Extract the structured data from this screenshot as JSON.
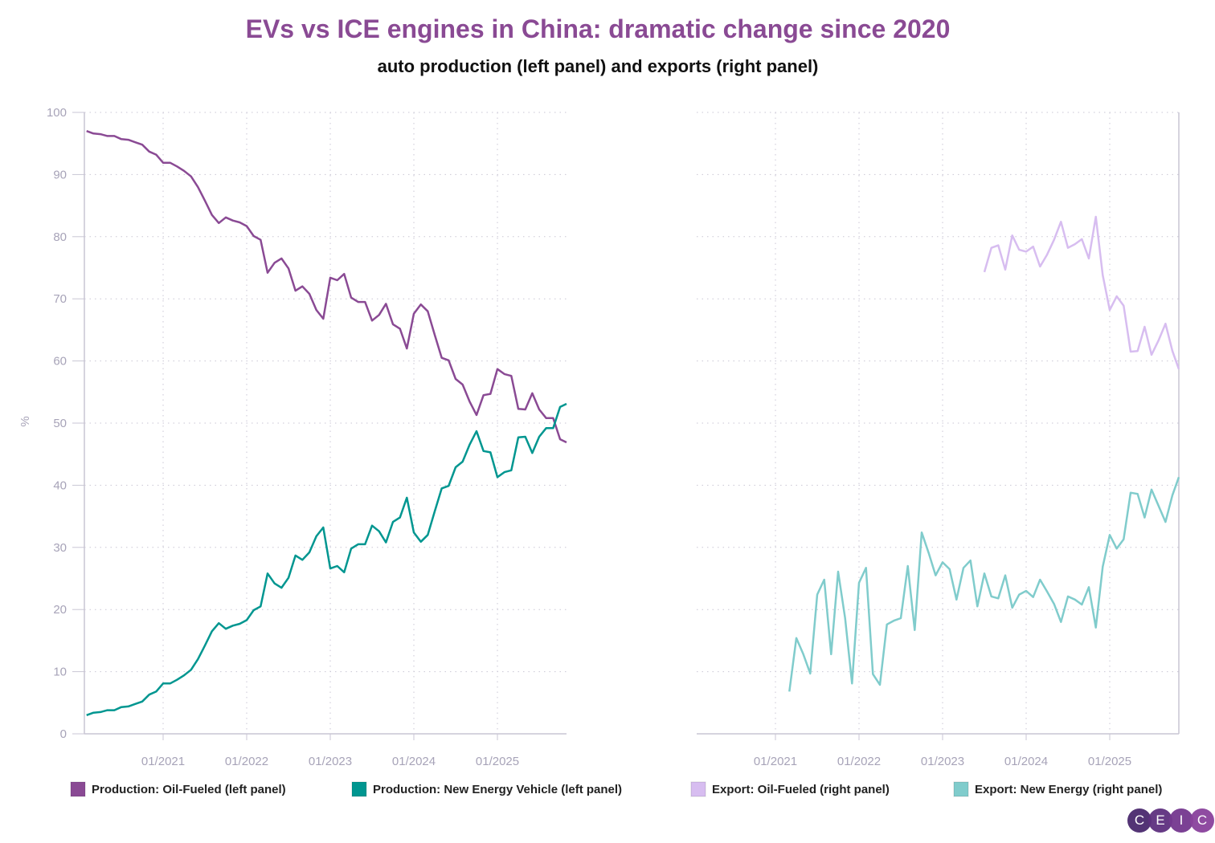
{
  "chart_data": [
    {
      "type": "line",
      "panel": "left",
      "title": "EVs vs ICE engines in China: dramatic change since 2020",
      "subtitle": "auto production (left panel) and exports (right panel)",
      "ylabel": "%",
      "ylim": [
        0,
        100
      ],
      "yticks": [
        "0",
        "10",
        "20",
        "30",
        "40",
        "50",
        "60",
        "70",
        "80",
        "90",
        "100"
      ],
      "xticks": [
        "01/2021",
        "01/2022",
        "01/2023",
        "01/2024",
        "01/2025"
      ],
      "grid": true,
      "x": [
        "2020-02",
        "2020-03",
        "2020-04",
        "2020-05",
        "2020-06",
        "2020-07",
        "2020-08",
        "2020-09",
        "2020-10",
        "2020-11",
        "2020-12",
        "2021-01",
        "2021-02",
        "2021-03",
        "2021-04",
        "2021-05",
        "2021-06",
        "2021-07",
        "2021-08",
        "2021-09",
        "2021-10",
        "2021-11",
        "2021-12",
        "2022-01",
        "2022-02",
        "2022-03",
        "2022-04",
        "2022-05",
        "2022-06",
        "2022-07",
        "2022-08",
        "2022-09",
        "2022-10",
        "2022-11",
        "2022-12",
        "2023-01",
        "2023-02",
        "2023-03",
        "2023-04",
        "2023-05",
        "2023-06",
        "2023-07",
        "2023-08",
        "2023-09",
        "2023-10",
        "2023-11",
        "2023-12",
        "2024-01",
        "2024-02",
        "2024-03",
        "2024-04",
        "2024-05",
        "2024-06",
        "2024-07",
        "2024-08",
        "2024-09",
        "2024-10",
        "2024-11",
        "2024-12",
        "2025-01",
        "2025-02",
        "2025-03",
        "2025-04",
        "2025-05",
        "2025-06",
        "2025-07",
        "2025-08",
        "2025-09",
        "2025-10",
        "2025-11"
      ],
      "series": [
        {
          "name": "Production: Oil-Fueled (left panel)",
          "color": "#8a4a94",
          "values": [
            97.0,
            96.6,
            96.5,
            96.2,
            96.2,
            95.7,
            95.6,
            95.2,
            94.8,
            93.7,
            93.2,
            91.9,
            91.9,
            91.3,
            90.6,
            89.7,
            88.0,
            85.8,
            83.5,
            82.2,
            83.1,
            82.6,
            82.3,
            81.7,
            80.1,
            79.5,
            74.2,
            75.8,
            76.5,
            74.9,
            71.3,
            72.0,
            70.8,
            68.2,
            66.8,
            73.4,
            73.0,
            74.0,
            70.2,
            69.5,
            69.5,
            66.5,
            67.4,
            69.2,
            65.9,
            65.2,
            62.0,
            67.6,
            69.1,
            68.0,
            64.2,
            60.5,
            60.1,
            57.1,
            56.2,
            53.5,
            51.3,
            54.5,
            54.7,
            58.7,
            57.9,
            57.6,
            52.3,
            52.2,
            54.8,
            52.2,
            50.8,
            50.8,
            47.4,
            46.9
          ]
        },
        {
          "name": "Production: New Energy Vehicle (left panel)",
          "color": "#009690",
          "values": [
            3.0,
            3.4,
            3.5,
            3.8,
            3.8,
            4.3,
            4.4,
            4.8,
            5.2,
            6.3,
            6.8,
            8.1,
            8.1,
            8.7,
            9.4,
            10.3,
            12.0,
            14.2,
            16.5,
            17.8,
            16.9,
            17.4,
            17.7,
            18.3,
            19.9,
            20.5,
            25.8,
            24.2,
            23.5,
            25.1,
            28.7,
            28.0,
            29.2,
            31.8,
            33.2,
            26.6,
            27.0,
            26.0,
            29.8,
            30.5,
            30.5,
            33.5,
            32.6,
            30.8,
            34.1,
            34.8,
            38.0,
            32.4,
            30.9,
            32.0,
            35.8,
            39.5,
            39.9,
            42.9,
            43.8,
            46.5,
            48.7,
            45.5,
            45.3,
            41.3,
            42.1,
            42.4,
            47.7,
            47.8,
            45.2,
            47.8,
            49.2,
            49.2,
            52.6,
            53.1
          ]
        }
      ]
    },
    {
      "type": "line",
      "panel": "right",
      "ylim": [
        0,
        100
      ],
      "xticks": [
        "01/2021",
        "01/2022",
        "01/2023",
        "01/2024",
        "01/2025"
      ],
      "grid": true,
      "x": [
        "2021-03",
        "2021-04",
        "2021-05",
        "2021-06",
        "2021-07",
        "2021-08",
        "2021-09",
        "2021-10",
        "2021-11",
        "2021-12",
        "2022-01",
        "2022-02",
        "2022-03",
        "2022-04",
        "2022-05",
        "2022-06",
        "2022-07",
        "2022-08",
        "2022-09",
        "2022-10",
        "2022-11",
        "2022-12",
        "2023-01",
        "2023-02",
        "2023-03",
        "2023-04",
        "2023-05",
        "2023-06",
        "2023-07",
        "2023-08",
        "2023-09",
        "2023-10",
        "2023-11",
        "2023-12",
        "2024-01",
        "2024-02",
        "2024-03",
        "2024-04",
        "2024-05",
        "2024-06",
        "2024-07",
        "2024-08",
        "2024-09",
        "2024-10",
        "2024-11",
        "2024-12",
        "2025-01",
        "2025-02",
        "2025-03",
        "2025-04",
        "2025-05",
        "2025-06",
        "2025-07",
        "2025-08",
        "2025-09",
        "2025-10",
        "2025-11"
      ],
      "series": [
        {
          "name": "Export: Oil-Fueled (right panel)",
          "color": "#d7bdf0",
          "values": [
            null,
            null,
            null,
            null,
            null,
            null,
            null,
            null,
            null,
            null,
            null,
            null,
            null,
            null,
            null,
            null,
            null,
            null,
            null,
            null,
            null,
            null,
            null,
            null,
            null,
            null,
            null,
            null,
            74.3,
            78.2,
            78.6,
            74.7,
            80.2,
            77.9,
            77.6,
            78.4,
            75.2,
            77.1,
            79.5,
            82.4,
            78.2,
            78.8,
            79.6,
            76.5,
            83.2,
            73.8,
            68.2,
            70.4,
            68.9,
            61.5,
            61.6,
            65.5,
            61.0,
            63.3,
            66.0,
            61.6,
            58.7
          ]
        },
        {
          "name": "Export: New Energy (right panel)",
          "color": "#80cccc",
          "values": [
            6.8,
            15.4,
            12.8,
            9.7,
            22.4,
            24.8,
            12.8,
            26.1,
            18.6,
            8.1,
            24.3,
            26.7,
            9.6,
            7.9,
            17.6,
            18.2,
            18.6,
            27.0,
            16.7,
            32.4,
            29.1,
            25.5,
            27.6,
            26.5,
            21.6,
            26.7,
            27.9,
            20.5,
            25.8,
            22.1,
            21.8,
            25.5,
            20.3,
            22.4,
            23.0,
            22.0,
            24.8,
            22.9,
            20.9,
            18.0,
            22.1,
            21.6,
            20.8,
            23.6,
            17.1,
            26.9,
            32.0,
            29.8,
            31.3,
            38.8,
            38.6,
            34.8,
            39.3,
            36.7,
            34.1,
            38.4,
            41.3
          ]
        }
      ]
    }
  ],
  "logo": {
    "letters": [
      "C",
      "E",
      "I",
      "C"
    ],
    "colors": [
      "#4a2a6e",
      "#5e307f",
      "#74378f",
      "#8a429c"
    ]
  }
}
